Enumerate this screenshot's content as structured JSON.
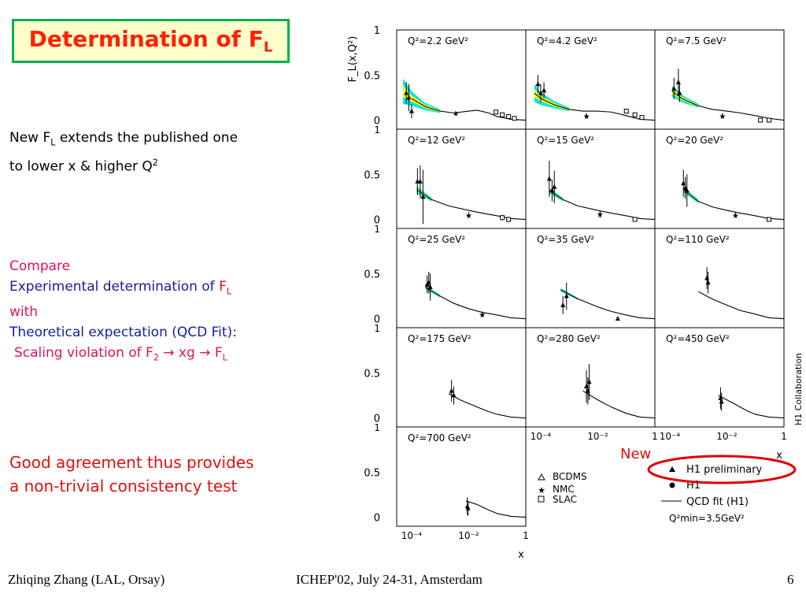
{
  "slide": {
    "title_main": "Determination of F",
    "title_sub": "L",
    "intro_line1_pre": "New F",
    "intro_line1_sub": "L",
    "intro_line1_post": " extends the published one",
    "intro_line2_pre": "to lower x & higher Q",
    "intro_line2_sup": "2",
    "compare": "Compare",
    "exp_pre": "Experimental determination of ",
    "exp_f": "F",
    "exp_sub": "L",
    "with": "with",
    "theory": "Theoretical expectation (QCD Fit):",
    "scaling_pre": "Scaling violation of F",
    "scaling_sub2": "2",
    "scaling_mid": " → xg → F",
    "scaling_subL": "L",
    "good1": "Good agreement thus provides",
    "good2": "a non-trivial consistency test",
    "new_label": "New",
    "footer_left": "Zhiqing Zhang (LAL, Orsay)",
    "footer_center": "ICHEP'02, July 24-31, Amsterdam",
    "footer_right": "6"
  },
  "colors": {
    "title_red": "#ff2000",
    "title_border": "#00b050",
    "compare_pink": "#e0105f",
    "exp_blue": "#1a1a9f",
    "good_red": "#e01010",
    "band_cyan": "#00e5ee",
    "band_yellow": "#ffff00",
    "ellipse_red": "#e00000"
  },
  "chart_data": {
    "type": "scatter",
    "ylabel": "F_L(x,Q²)",
    "xlabel": "x",
    "y_ticks": [
      "0",
      "0.5",
      "1"
    ],
    "x_ticks": [
      "10⁻⁴",
      "10⁻²",
      "1"
    ],
    "x_scale": "log",
    "xlim": [
      3e-05,
      1
    ],
    "ylim": [
      -0.1,
      1.0
    ],
    "side_label": "H1 Collaboration",
    "legend": {
      "BCDMS": "BCDMS",
      "NMC": "NMC",
      "SLAC": "SLAC",
      "h1_prelim": "H1 preliminary",
      "h1": "H1",
      "qcd": "QCD fit (H1)",
      "qmin": "Q²min=3.5GeV²"
    },
    "panels": [
      {
        "label": "Q²=2.2 GeV²",
        "q2": 2.2,
        "band": [
          [
            5e-05,
            0.32,
            0.14
          ],
          [
            0.0001,
            0.24,
            0.08
          ],
          [
            0.0003,
            0.15,
            0.04
          ],
          [
            0.001,
            0.1,
            0.02
          ]
        ],
        "curve": [
          [
            0.0001,
            0.24
          ],
          [
            0.0003,
            0.15
          ],
          [
            0.001,
            0.1
          ],
          [
            0.003,
            0.08
          ],
          [
            0.01,
            0.1
          ],
          [
            0.02,
            0.11
          ],
          [
            0.05,
            0.08
          ],
          [
            0.1,
            0.04
          ],
          [
            0.3,
            0.01
          ],
          [
            1,
            0
          ]
        ],
        "points": [
          {
            "x": 6.5e-05,
            "y": 0.3,
            "e": 0.12,
            "s": "tri"
          },
          {
            "x": 8e-05,
            "y": 0.25,
            "e": 0.15,
            "s": "tri"
          },
          {
            "x": 0.0001,
            "y": 0.1,
            "e": 0.08,
            "s": "tri"
          },
          {
            "x": 0.0035,
            "y": 0.08,
            "e": 0.02,
            "s": "star"
          },
          {
            "x": 0.09,
            "y": 0.09,
            "e": 0.02,
            "s": "sq"
          },
          {
            "x": 0.15,
            "y": 0.06,
            "e": 0.02,
            "s": "sq"
          },
          {
            "x": 0.25,
            "y": 0.04,
            "e": 0.02,
            "s": "sq"
          },
          {
            "x": 0.4,
            "y": 0.02,
            "e": 0.02,
            "s": "sq"
          }
        ]
      },
      {
        "label": "Q²=4.2 GeV²",
        "q2": 4.2,
        "band": [
          [
            6e-05,
            0.3,
            0.1
          ],
          [
            0.0001,
            0.24,
            0.07
          ],
          [
            0.0003,
            0.17,
            0.04
          ],
          [
            0.001,
            0.12,
            0.02
          ]
        ],
        "curve": [
          [
            6e-05,
            0.3
          ],
          [
            0.0001,
            0.24
          ],
          [
            0.0003,
            0.17
          ],
          [
            0.001,
            0.12
          ],
          [
            0.003,
            0.1
          ],
          [
            0.01,
            0.1
          ],
          [
            0.03,
            0.09
          ],
          [
            0.1,
            0.05
          ],
          [
            0.3,
            0.01
          ],
          [
            1,
            0
          ]
        ],
        "points": [
          {
            "x": 8e-05,
            "y": 0.4,
            "e": 0.1,
            "s": "tri"
          },
          {
            "x": 0.0001,
            "y": 0.3,
            "e": 0.1,
            "s": "tri"
          },
          {
            "x": 0.00013,
            "y": 0.33,
            "e": 0.09,
            "s": "tri"
          },
          {
            "x": 0.004,
            "y": 0.05,
            "e": 0.03,
            "s": "star"
          },
          {
            "x": 0.1,
            "y": 0.1,
            "e": 0.02,
            "s": "sq"
          },
          {
            "x": 0.2,
            "y": 0.06,
            "e": 0.02,
            "s": "sq"
          },
          {
            "x": 0.35,
            "y": 0.03,
            "e": 0.02,
            "s": "sq"
          }
        ]
      },
      {
        "label": "Q²=7.5 GeV²",
        "q2": 7.5,
        "band": [
          [
            0.00012,
            0.32,
            0.06
          ],
          [
            0.0003,
            0.23,
            0.04
          ],
          [
            0.001,
            0.16,
            0.02
          ]
        ],
        "curve": [
          [
            0.00012,
            0.32
          ],
          [
            0.0003,
            0.23
          ],
          [
            0.001,
            0.16
          ],
          [
            0.003,
            0.12
          ],
          [
            0.01,
            0.1
          ],
          [
            0.03,
            0.08
          ],
          [
            0.1,
            0.05
          ],
          [
            0.3,
            0.02
          ],
          [
            1,
            0
          ]
        ],
        "points": [
          {
            "x": 0.00014,
            "y": 0.35,
            "e": 0.12,
            "s": "tri"
          },
          {
            "x": 0.0002,
            "y": 0.42,
            "e": 0.15,
            "s": "tri"
          },
          {
            "x": 0.00022,
            "y": 0.3,
            "e": 0.1,
            "s": "tri"
          },
          {
            "x": 0.007,
            "y": 0.05,
            "e": 0.03,
            "s": "star"
          },
          {
            "x": 0.15,
            "y": 0.0,
            "e": 0.02,
            "s": "sq"
          },
          {
            "x": 0.3,
            "y": 0.0,
            "e": 0.02,
            "s": "sq"
          }
        ]
      },
      {
        "label": "Q²=12 GeV²",
        "q2": 12,
        "band": [
          [
            0.00015,
            0.33,
            0.04
          ],
          [
            0.0005,
            0.22,
            0.02
          ]
        ],
        "curve": [
          [
            0.00015,
            0.33
          ],
          [
            0.0005,
            0.22
          ],
          [
            0.002,
            0.15
          ],
          [
            0.01,
            0.1
          ],
          [
            0.03,
            0.07
          ],
          [
            0.1,
            0.04
          ],
          [
            0.3,
            0.01
          ],
          [
            1,
            0
          ]
        ],
        "points": [
          {
            "x": 0.00016,
            "y": 0.42,
            "e": 0.15,
            "s": "tri"
          },
          {
            "x": 0.0002,
            "y": 0.42,
            "e": 0.18,
            "s": "tri"
          },
          {
            "x": 0.00025,
            "y": 0.25,
            "e": 0.3,
            "s": "tri"
          },
          {
            "x": 0.01,
            "y": 0.05,
            "e": 0.03,
            "s": "star"
          },
          {
            "x": 0.15,
            "y": 0.02,
            "e": 0.03,
            "s": "sq"
          },
          {
            "x": 0.25,
            "y": 0.0,
            "e": 0.03,
            "s": "sq"
          }
        ]
      },
      {
        "label": "Q²=15 GeV²",
        "q2": 15,
        "band": [
          [
            0.0002,
            0.32,
            0.03
          ],
          [
            0.0006,
            0.22,
            0.02
          ]
        ],
        "curve": [
          [
            0.0002,
            0.32
          ],
          [
            0.0006,
            0.22
          ],
          [
            0.002,
            0.15
          ],
          [
            0.01,
            0.1
          ],
          [
            0.03,
            0.07
          ],
          [
            0.1,
            0.04
          ],
          [
            0.3,
            0.01
          ],
          [
            1,
            0
          ]
        ],
        "points": [
          {
            "x": 0.0002,
            "y": 0.45,
            "e": 0.2,
            "s": "tri"
          },
          {
            "x": 0.00025,
            "y": 0.32,
            "e": 0.12,
            "s": "tri"
          },
          {
            "x": 0.0003,
            "y": 0.36,
            "e": 0.18,
            "s": "tri"
          },
          {
            "x": 0.012,
            "y": 0.06,
            "e": 0.04,
            "s": "star"
          },
          {
            "x": 0.2,
            "y": 0.0,
            "e": 0.02,
            "s": "sq"
          }
        ]
      },
      {
        "label": "Q²=20 GeV²",
        "q2": 20,
        "band": [
          [
            0.0003,
            0.33,
            0.03
          ],
          [
            0.001,
            0.2,
            0.02
          ]
        ],
        "curve": [
          [
            0.0003,
            0.33
          ],
          [
            0.001,
            0.2
          ],
          [
            0.003,
            0.14
          ],
          [
            0.01,
            0.1
          ],
          [
            0.03,
            0.07
          ],
          [
            0.1,
            0.04
          ],
          [
            0.3,
            0.01
          ],
          [
            1,
            0
          ]
        ],
        "points": [
          {
            "x": 0.0003,
            "y": 0.4,
            "e": 0.15,
            "s": "tri"
          },
          {
            "x": 0.00035,
            "y": 0.35,
            "e": 0.12,
            "s": "tri"
          },
          {
            "x": 0.0004,
            "y": 0.32,
            "e": 0.18,
            "s": "tri"
          },
          {
            "x": 0.02,
            "y": 0.05,
            "e": 0.03,
            "s": "star"
          },
          {
            "x": 0.3,
            "y": 0.0,
            "e": 0.02,
            "s": "sq"
          }
        ]
      },
      {
        "label": "Q²=25 GeV²",
        "q2": 25,
        "band": [
          [
            0.0003,
            0.35,
            0.02
          ],
          [
            0.001,
            0.25,
            0.015
          ]
        ],
        "curve": [
          [
            0.0003,
            0.35
          ],
          [
            0.001,
            0.25
          ],
          [
            0.003,
            0.17
          ],
          [
            0.01,
            0.11
          ],
          [
            0.03,
            0.07
          ],
          [
            0.1,
            0.04
          ],
          [
            0.3,
            0.01
          ],
          [
            1,
            0
          ]
        ],
        "points": [
          {
            "x": 0.00035,
            "y": 0.38,
            "e": 0.1,
            "s": "tri"
          },
          {
            "x": 0.0004,
            "y": 0.4,
            "e": 0.12,
            "s": "tri"
          },
          {
            "x": 0.00045,
            "y": 0.35,
            "e": 0.15,
            "s": "tri"
          },
          {
            "x": 0.03,
            "y": 0.05,
            "e": 0.03,
            "s": "star"
          }
        ]
      },
      {
        "label": "Q²=35 GeV²",
        "q2": 35,
        "band": [
          [
            0.0005,
            0.32,
            0.02
          ],
          [
            0.002,
            0.22,
            0.01
          ]
        ],
        "curve": [
          [
            0.0005,
            0.32
          ],
          [
            0.002,
            0.22
          ],
          [
            0.01,
            0.13
          ],
          [
            0.03,
            0.08
          ],
          [
            0.1,
            0.04
          ],
          [
            0.3,
            0.01
          ],
          [
            1,
            0
          ]
        ],
        "points": [
          {
            "x": 0.0006,
            "y": 0.15,
            "e": 0.1,
            "s": "tri"
          },
          {
            "x": 0.0008,
            "y": 0.25,
            "e": 0.15,
            "s": "tri"
          },
          {
            "x": 0.05,
            "y": 0.0,
            "e": 0.02,
            "s": "tri"
          }
        ]
      },
      {
        "label": "Q²=110 GeV²",
        "q2": 110,
        "band": [],
        "curve": [
          [
            0.001,
            0.3
          ],
          [
            0.003,
            0.22
          ],
          [
            0.01,
            0.15
          ],
          [
            0.03,
            0.09
          ],
          [
            0.1,
            0.05
          ],
          [
            0.3,
            0.01
          ],
          [
            1,
            0
          ]
        ],
        "points": [
          {
            "x": 0.002,
            "y": 0.45,
            "e": 0.12,
            "s": "tri"
          },
          {
            "x": 0.0022,
            "y": 0.4,
            "e": 0.12,
            "s": "tri"
          }
        ]
      },
      {
        "label": "Q²=175 GeV²",
        "q2": 175,
        "band": [],
        "curve": [
          [
            0.002,
            0.27
          ],
          [
            0.005,
            0.2
          ],
          [
            0.02,
            0.12
          ],
          [
            0.05,
            0.07
          ],
          [
            0.1,
            0.04
          ],
          [
            0.3,
            0.01
          ],
          [
            1,
            0
          ]
        ],
        "points": [
          {
            "x": 0.0025,
            "y": 0.3,
            "e": 0.12,
            "s": "tri"
          },
          {
            "x": 0.003,
            "y": 0.25,
            "e": 0.1,
            "s": "tri"
          }
        ]
      },
      {
        "label": "Q²=280 GeV²",
        "q2": 280,
        "band": [],
        "curve": [
          [
            0.003,
            0.3
          ],
          [
            0.01,
            0.2
          ],
          [
            0.03,
            0.12
          ],
          [
            0.1,
            0.05
          ],
          [
            0.3,
            0.01
          ],
          [
            1,
            0
          ]
        ],
        "points": [
          {
            "x": 0.004,
            "y": 0.35,
            "e": 0.18,
            "s": "tri"
          },
          {
            "x": 0.0045,
            "y": 0.3,
            "e": 0.15,
            "s": "tri"
          },
          {
            "x": 0.005,
            "y": 0.4,
            "e": 0.2,
            "s": "tri"
          }
        ]
      },
      {
        "label": "Q²=450 GeV²",
        "q2": 450,
        "band": [],
        "curve": [
          [
            0.005,
            0.25
          ],
          [
            0.02,
            0.15
          ],
          [
            0.05,
            0.08
          ],
          [
            0.1,
            0.04
          ],
          [
            0.3,
            0.01
          ],
          [
            1,
            0
          ]
        ],
        "points": [
          {
            "x": 0.006,
            "y": 0.22,
            "e": 0.12,
            "s": "tri"
          },
          {
            "x": 0.0065,
            "y": 0.18,
            "e": 0.1,
            "s": "tri"
          }
        ]
      },
      {
        "label": "Q²=700 GeV²",
        "q2": 700,
        "band": [],
        "curve": [
          [
            0.008,
            0.18
          ],
          [
            0.02,
            0.14
          ],
          [
            0.05,
            0.08
          ],
          [
            0.1,
            0.04
          ],
          [
            0.3,
            0.01
          ],
          [
            1,
            0
          ]
        ],
        "points": [
          {
            "x": 0.009,
            "y": 0.12,
            "e": 0.1,
            "s": "tri"
          },
          {
            "x": 0.0095,
            "y": 0.1,
            "e": 0.08,
            "s": "tri"
          }
        ]
      }
    ]
  }
}
